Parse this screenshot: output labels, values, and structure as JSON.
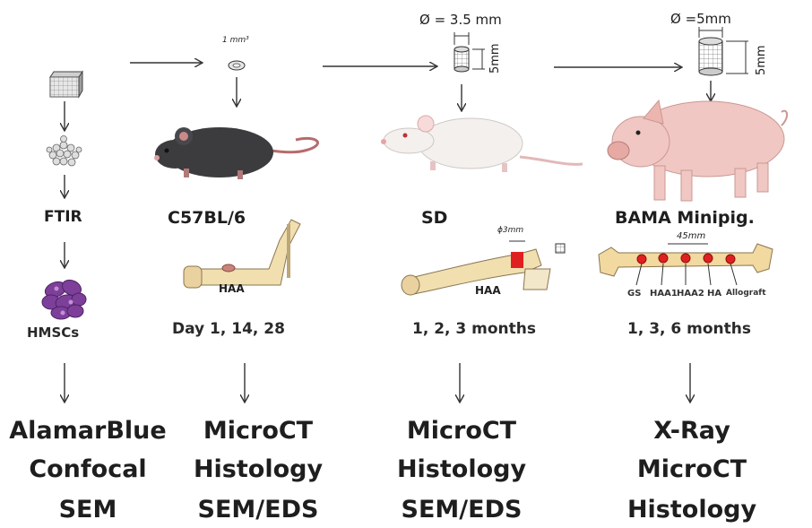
{
  "top": {
    "dim_sd": "Ø = 3.5 mm",
    "dim_sd_h": "5mm",
    "dim_pig": "Ø =5mm",
    "dim_pig_h": "5mm",
    "mm3": "1 mm³"
  },
  "columns": [
    {
      "title": "FTIR",
      "subtitle": "HMSCs",
      "outcomes": [
        "AlamarBlue",
        "Confocal",
        "SEM"
      ]
    },
    {
      "title": "C57BL/6",
      "bone_label": "HAA",
      "timepoints": "Day 1, 14, 28",
      "outcomes": [
        "MicroCT",
        "Histology",
        "SEM/EDS"
      ]
    },
    {
      "title": "SD",
      "bone_label": "HAA",
      "defect_label": "ϕ3mm",
      "timepoints": "1, 2, 3 months",
      "outcomes": [
        "MicroCT",
        "Histology",
        "SEM/EDS"
      ]
    },
    {
      "title": "BAMA Minipig.",
      "bone_length": "45mm",
      "implant_labels": [
        "GS",
        "HAA1",
        "HAA2",
        "HA",
        "Allograft"
      ],
      "timepoints": "1, 3, 6 months",
      "outcomes": [
        "X-Ray",
        "MicroCT",
        "Histology"
      ]
    }
  ]
}
